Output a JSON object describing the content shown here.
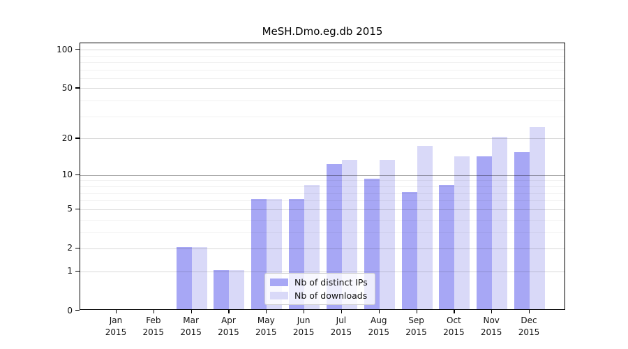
{
  "chart_data": {
    "type": "bar",
    "title": "MeSH.Dmo.eg.db 2015",
    "categories": [
      "Jan",
      "Feb",
      "Mar",
      "Apr",
      "May",
      "Jun",
      "Jul",
      "Aug",
      "Sep",
      "Oct",
      "Nov",
      "Dec"
    ],
    "category_year": "2015",
    "series": [
      {
        "name": "Nb of distinct IPs",
        "color": "#a7a7f5",
        "values": [
          0,
          0,
          2,
          1,
          6,
          6,
          12,
          9,
          7,
          8,
          14,
          15
        ]
      },
      {
        "name": "Nb of downloads",
        "color": "#d9d9f8",
        "values": [
          0,
          0,
          2,
          1,
          6,
          8,
          13,
          13,
          17,
          14,
          20,
          24
        ]
      }
    ],
    "xlabel": "",
    "ylabel": "",
    "y_scale": "log1p",
    "y_ticks": [
      0,
      1,
      2,
      5,
      10,
      20,
      50,
      100
    ],
    "y_minor_ticks": [
      3,
      4,
      6,
      7,
      8,
      9,
      30,
      40,
      60,
      70,
      80,
      90
    ],
    "emphasized_gridline": 10,
    "ylim": [
      0,
      112
    ],
    "grid": true,
    "gridlines_above_bars": true,
    "legend_position": "lower-center",
    "axis_color": "#000000",
    "major_grid_color": "#d9d9d9",
    "minor_grid_color": "#f0f0f0",
    "emph_grid_color": "#a8a8a8"
  }
}
